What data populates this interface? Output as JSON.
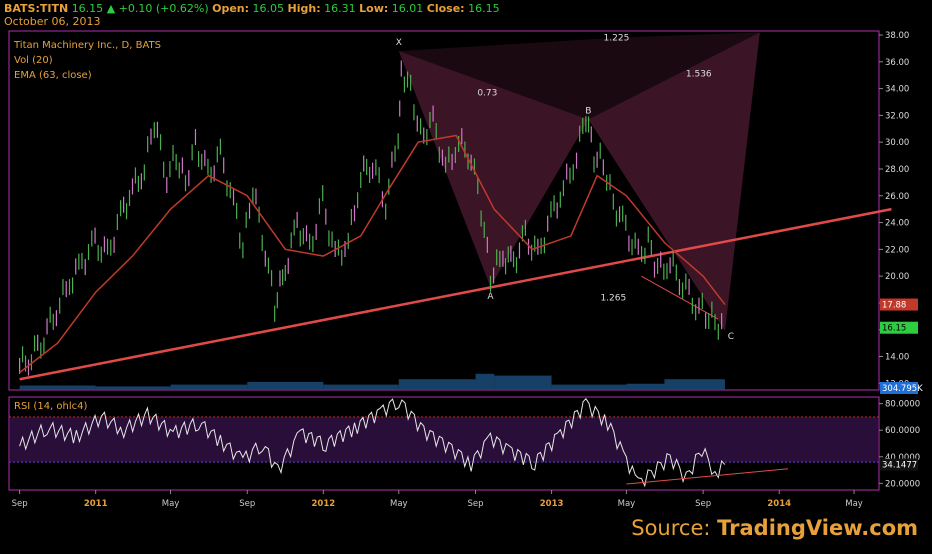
{
  "header": {
    "symbol": "BATS:TITN",
    "last": "16.15",
    "change": "+0.10 (+0.62%)",
    "open_label": "Open:",
    "open": "16.05",
    "high_label": "High:",
    "high": "16.31",
    "low_label": "Low:",
    "low": "16.01",
    "close_label": "Close:",
    "close": "16.15",
    "date": "October 06, 2013"
  },
  "legend": {
    "title": "Titan Machinery Inc., D, BATS",
    "vol": "Vol (20)",
    "ema": "EMA (63, close)",
    "rsi": "RSI (14, ohlc4)"
  },
  "source": {
    "prefix": "Source:",
    "brand": "TradingView.com"
  },
  "colors": {
    "up_candle": "#4caf50",
    "down_candle": "#d078c8",
    "ema": "#c0392b",
    "trendline": "#e24a4a",
    "pattern_fill": "#6b2446",
    "frame": "#b030b0",
    "rsi_line": "#e6e6e6",
    "rsi_band": "#2a0e3a",
    "last_price_bg": "#2ecc40",
    "ema_price_bg": "#c0392b",
    "vol_badge_bg": "#1f6fd6",
    "accent": "#e8a13a"
  },
  "chart_data": {
    "type": "line",
    "title": "Titan Machinery Inc., D, BATS",
    "x_ticks": [
      "Sep",
      "2011",
      "May",
      "Sep",
      "2012",
      "May",
      "Sep",
      "2013",
      "May",
      "Sep",
      "2014",
      "May"
    ],
    "price_axis": {
      "ylim": [
        11.5,
        38.3
      ],
      "ticks": [
        "12.00",
        "14.00",
        "16.00",
        "18.00",
        "20.00",
        "22.00",
        "24.00",
        "26.00",
        "28.00",
        "30.00",
        "32.00",
        "34.00",
        "36.00",
        "38.00"
      ]
    },
    "rsi_axis": {
      "ylim": [
        15,
        85
      ],
      "ticks": [
        "20.0000",
        "40.0000",
        "60.0000",
        "80.0000"
      ],
      "overbought": 70,
      "oversold": 36
    },
    "price_series": {
      "name": "TITN",
      "x": [
        "2010-09-01",
        "2010-09-20",
        "2010-10-10",
        "2010-10-30",
        "2010-11-20",
        "2010-12-10",
        "2010-12-31",
        "2011-01-20",
        "2011-02-10",
        "2011-03-01",
        "2011-03-20",
        "2011-04-05",
        "2011-04-25",
        "2011-05-10",
        "2011-05-25",
        "2011-06-10",
        "2011-06-30",
        "2011-07-20",
        "2011-08-10",
        "2011-08-25",
        "2011-09-10",
        "2011-09-30",
        "2011-10-15",
        "2011-11-01",
        "2011-11-20",
        "2011-12-10",
        "2011-12-31",
        "2012-01-20",
        "2012-02-10",
        "2012-03-01",
        "2012-03-20",
        "2012-04-10",
        "2012-04-30",
        "2012-05-05",
        "2012-05-20",
        "2012-06-05",
        "2012-06-25",
        "2012-07-15",
        "2012-08-05",
        "2012-08-25",
        "2012-09-10",
        "2012-09-25",
        "2012-10-15",
        "2012-11-01",
        "2012-11-20",
        "2012-12-10",
        "2012-12-31",
        "2013-01-20",
        "2013-02-10",
        "2013-02-25",
        "2013-03-10",
        "2013-03-25",
        "2013-04-10",
        "2013-04-30",
        "2013-05-20",
        "2013-06-05",
        "2013-06-20",
        "2013-07-10",
        "2013-07-30",
        "2013-08-20",
        "2013-09-05",
        "2013-09-20",
        "2013-10-06"
      ],
      "y": [
        13.3,
        14.0,
        15.5,
        17.5,
        19.5,
        21.0,
        22.5,
        21.5,
        24.5,
        26.5,
        28.0,
        31.5,
        27.5,
        29.0,
        27.0,
        30.0,
        27.5,
        29.0,
        25.5,
        22.0,
        26.5,
        22.0,
        17.8,
        20.5,
        24.0,
        22.0,
        25.5,
        21.5,
        22.5,
        27.5,
        28.5,
        25.5,
        30.5,
        35.5,
        34.0,
        30.5,
        31.5,
        28.0,
        30.0,
        29.0,
        25.0,
        20.0,
        21.5,
        21.0,
        23.0,
        21.5,
        24.5,
        26.5,
        29.0,
        32.0,
        29.0,
        28.5,
        25.5,
        23.5,
        21.5,
        22.5,
        20.5,
        21.0,
        19.5,
        18.0,
        17.2,
        16.7,
        16.15
      ]
    },
    "ema_series": {
      "name": "EMA (63, close)",
      "x": [
        "2010-09-01",
        "2010-11-01",
        "2011-01-01",
        "2011-03-01",
        "2011-05-01",
        "2011-07-01",
        "2011-09-01",
        "2011-11-01",
        "2012-01-01",
        "2012-03-01",
        "2012-04-15",
        "2012-06-01",
        "2012-08-01",
        "2012-10-01",
        "2012-12-01",
        "2013-02-01",
        "2013-03-15",
        "2013-05-01",
        "2013-07-01",
        "2013-09-01",
        "2013-10-06"
      ],
      "y": [
        12.8,
        15.0,
        18.8,
        21.5,
        25.0,
        27.5,
        26.0,
        22.0,
        21.5,
        23.0,
        26.5,
        30.0,
        30.5,
        25.0,
        22.0,
        23.0,
        27.5,
        26.0,
        22.5,
        20.0,
        17.88
      ]
    },
    "trendline": {
      "x": [
        "2010-09-01",
        "2014-06-30"
      ],
      "y": [
        12.3,
        25.0
      ]
    },
    "pattern": {
      "points": [
        {
          "label": "X",
          "x": "2012-05-01",
          "y": 36.8
        },
        {
          "label": "A",
          "x": "2012-09-25",
          "y": 19.2
        },
        {
          "label": "B",
          "x": "2013-03-01",
          "y": 31.7
        },
        {
          "label": "C",
          "x": "2013-10-06",
          "y": 15.9
        }
      ],
      "ratios": [
        {
          "text": "0.73",
          "x": "2012-09-20",
          "y": 33.5
        },
        {
          "text": "1.225",
          "x": "2013-04-15",
          "y": 37.6
        },
        {
          "text": "1.536",
          "x": "2013-08-25",
          "y": 34.9
        },
        {
          "text": "1.265",
          "x": "2013-04-10",
          "y": 18.2
        }
      ]
    },
    "channel_line": {
      "x": [
        "2013-05-25",
        "2013-09-25"
      ],
      "y": [
        20.0,
        16.8
      ]
    },
    "volume": {
      "x": [
        "2010-09-01",
        "2011-01-01",
        "2011-05-01",
        "2011-09-01",
        "2012-01-01",
        "2012-05-01",
        "2012-09-01",
        "2012-10-01",
        "2013-01-01",
        "2013-05-01",
        "2013-07-01",
        "2013-10-06"
      ],
      "values": [
        0.25,
        0.2,
        0.3,
        0.45,
        0.3,
        0.6,
        0.9,
        0.8,
        0.3,
        0.35,
        0.6,
        0.45
      ],
      "last_label": "304.795K"
    },
    "rsi": {
      "name": "RSI (14, ohlc4)",
      "x": [
        "2010-09-01",
        "2010-10-15",
        "2010-12-01",
        "2011-01-10",
        "2011-02-15",
        "2011-03-25",
        "2011-05-05",
        "2011-06-15",
        "2011-07-20",
        "2011-08-25",
        "2011-09-25",
        "2011-10-20",
        "2011-11-25",
        "2012-01-05",
        "2012-02-20",
        "2012-04-01",
        "2012-05-01",
        "2012-06-10",
        "2012-07-20",
        "2012-08-25",
        "2012-09-25",
        "2012-10-25",
        "2012-12-05",
        "2013-01-15",
        "2013-02-25",
        "2013-04-01",
        "2013-05-01",
        "2013-05-20",
        "2013-06-15",
        "2013-07-10",
        "2013-08-05",
        "2013-08-30",
        "2013-09-20",
        "2013-10-06"
      ],
      "y": [
        48,
        62,
        55,
        70,
        60,
        72,
        58,
        66,
        52,
        38,
        50,
        30,
        58,
        50,
        62,
        74,
        83,
        60,
        48,
        35,
        55,
        45,
        36,
        58,
        80,
        66,
        38,
        20,
        30,
        40,
        24,
        46,
        28,
        34.15
      ]
    },
    "rsi_trendline": {
      "x": [
        "2013-05-01",
        "2014-01-15"
      ],
      "y": [
        19.5,
        31.0
      ]
    },
    "last_price_label": "16.15",
    "ema_price_label": "17.88",
    "rsi_last_label": "34.1477"
  }
}
